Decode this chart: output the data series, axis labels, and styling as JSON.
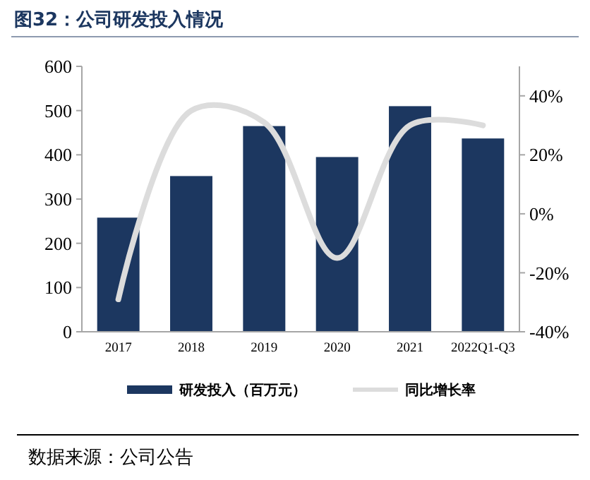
{
  "chart_data": {
    "type": "bar",
    "title": "图32：公司研发投入情况",
    "categories": [
      "2017",
      "2018",
      "2019",
      "2020",
      "2021",
      "2022Q1-Q3"
    ],
    "series": [
      {
        "name": "研发投入（百万元）",
        "color": "#1c3760",
        "values": [
          258,
          352,
          465,
          395,
          510,
          437
        ]
      },
      {
        "name": "同比增长率",
        "type": "line",
        "axis": "y2",
        "color": "#dcdcdc",
        "values": [
          -29,
          35,
          31,
          -15,
          30,
          30
        ]
      }
    ],
    "ylim": [
      0,
      600
    ],
    "yticks": [
      0,
      100,
      200,
      300,
      400,
      500,
      600
    ],
    "y2lim": [
      -40,
      50
    ],
    "y2ticks": [
      {
        "value": -40,
        "label": "-40%"
      },
      {
        "value": -20,
        "label": "-20%"
      },
      {
        "value": 0,
        "label": "0%"
      },
      {
        "value": 20,
        "label": "20%"
      },
      {
        "value": 40,
        "label": "40%"
      }
    ],
    "legend": "bottom",
    "grid": false,
    "annotations": [
      "数据来源：公司公告"
    ]
  }
}
